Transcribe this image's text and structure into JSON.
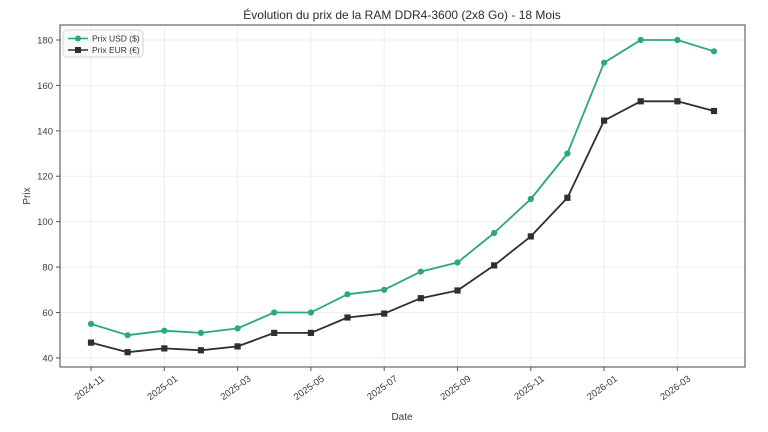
{
  "chart_data": {
    "type": "line",
    "title": "Évolution du prix de la RAM DDR4-3600 (2x8 Go) - 18 Mois",
    "xlabel": "Date",
    "ylabel": "Prix",
    "categories": [
      "2024-11",
      "2024-12",
      "2025-01",
      "2025-02",
      "2025-03",
      "2025-04",
      "2025-05",
      "2025-06",
      "2025-07",
      "2025-08",
      "2025-09",
      "2025-10",
      "2025-11",
      "2025-12",
      "2026-01",
      "2026-02",
      "2026-03",
      "2026-04"
    ],
    "series": [
      {
        "name": "Prix USD ($)",
        "color": "#2aa87a",
        "marker": "circle",
        "values": [
          55,
          50,
          52,
          51,
          53,
          60,
          60,
          68,
          70,
          78,
          82,
          95,
          110,
          130,
          170,
          180,
          180,
          175
        ]
      },
      {
        "name": "Prix EUR (€)",
        "color": "#2e2e33",
        "marker": "square",
        "values": [
          46.75,
          42.5,
          44.2,
          43.35,
          45.05,
          51,
          51,
          57.8,
          59.5,
          66.3,
          69.7,
          80.75,
          93.5,
          110.5,
          144.5,
          153,
          153,
          148.75
        ]
      }
    ],
    "yticks": [
      40,
      60,
      80,
      100,
      120,
      140,
      160,
      180
    ],
    "ylim": [
      36,
      186.6
    ],
    "xtick_every": 2,
    "xtick_rotation": -36,
    "grid": true,
    "legend_position": "upper-left",
    "colors": {
      "usd_line": "#2aa87a",
      "eur_line": "#2e2e33",
      "gridline": "#ededf2",
      "spine": "#55555c",
      "background": "#ffffff",
      "legend_background": "#fafafc",
      "legend_border": "#d6d6dc"
    }
  }
}
